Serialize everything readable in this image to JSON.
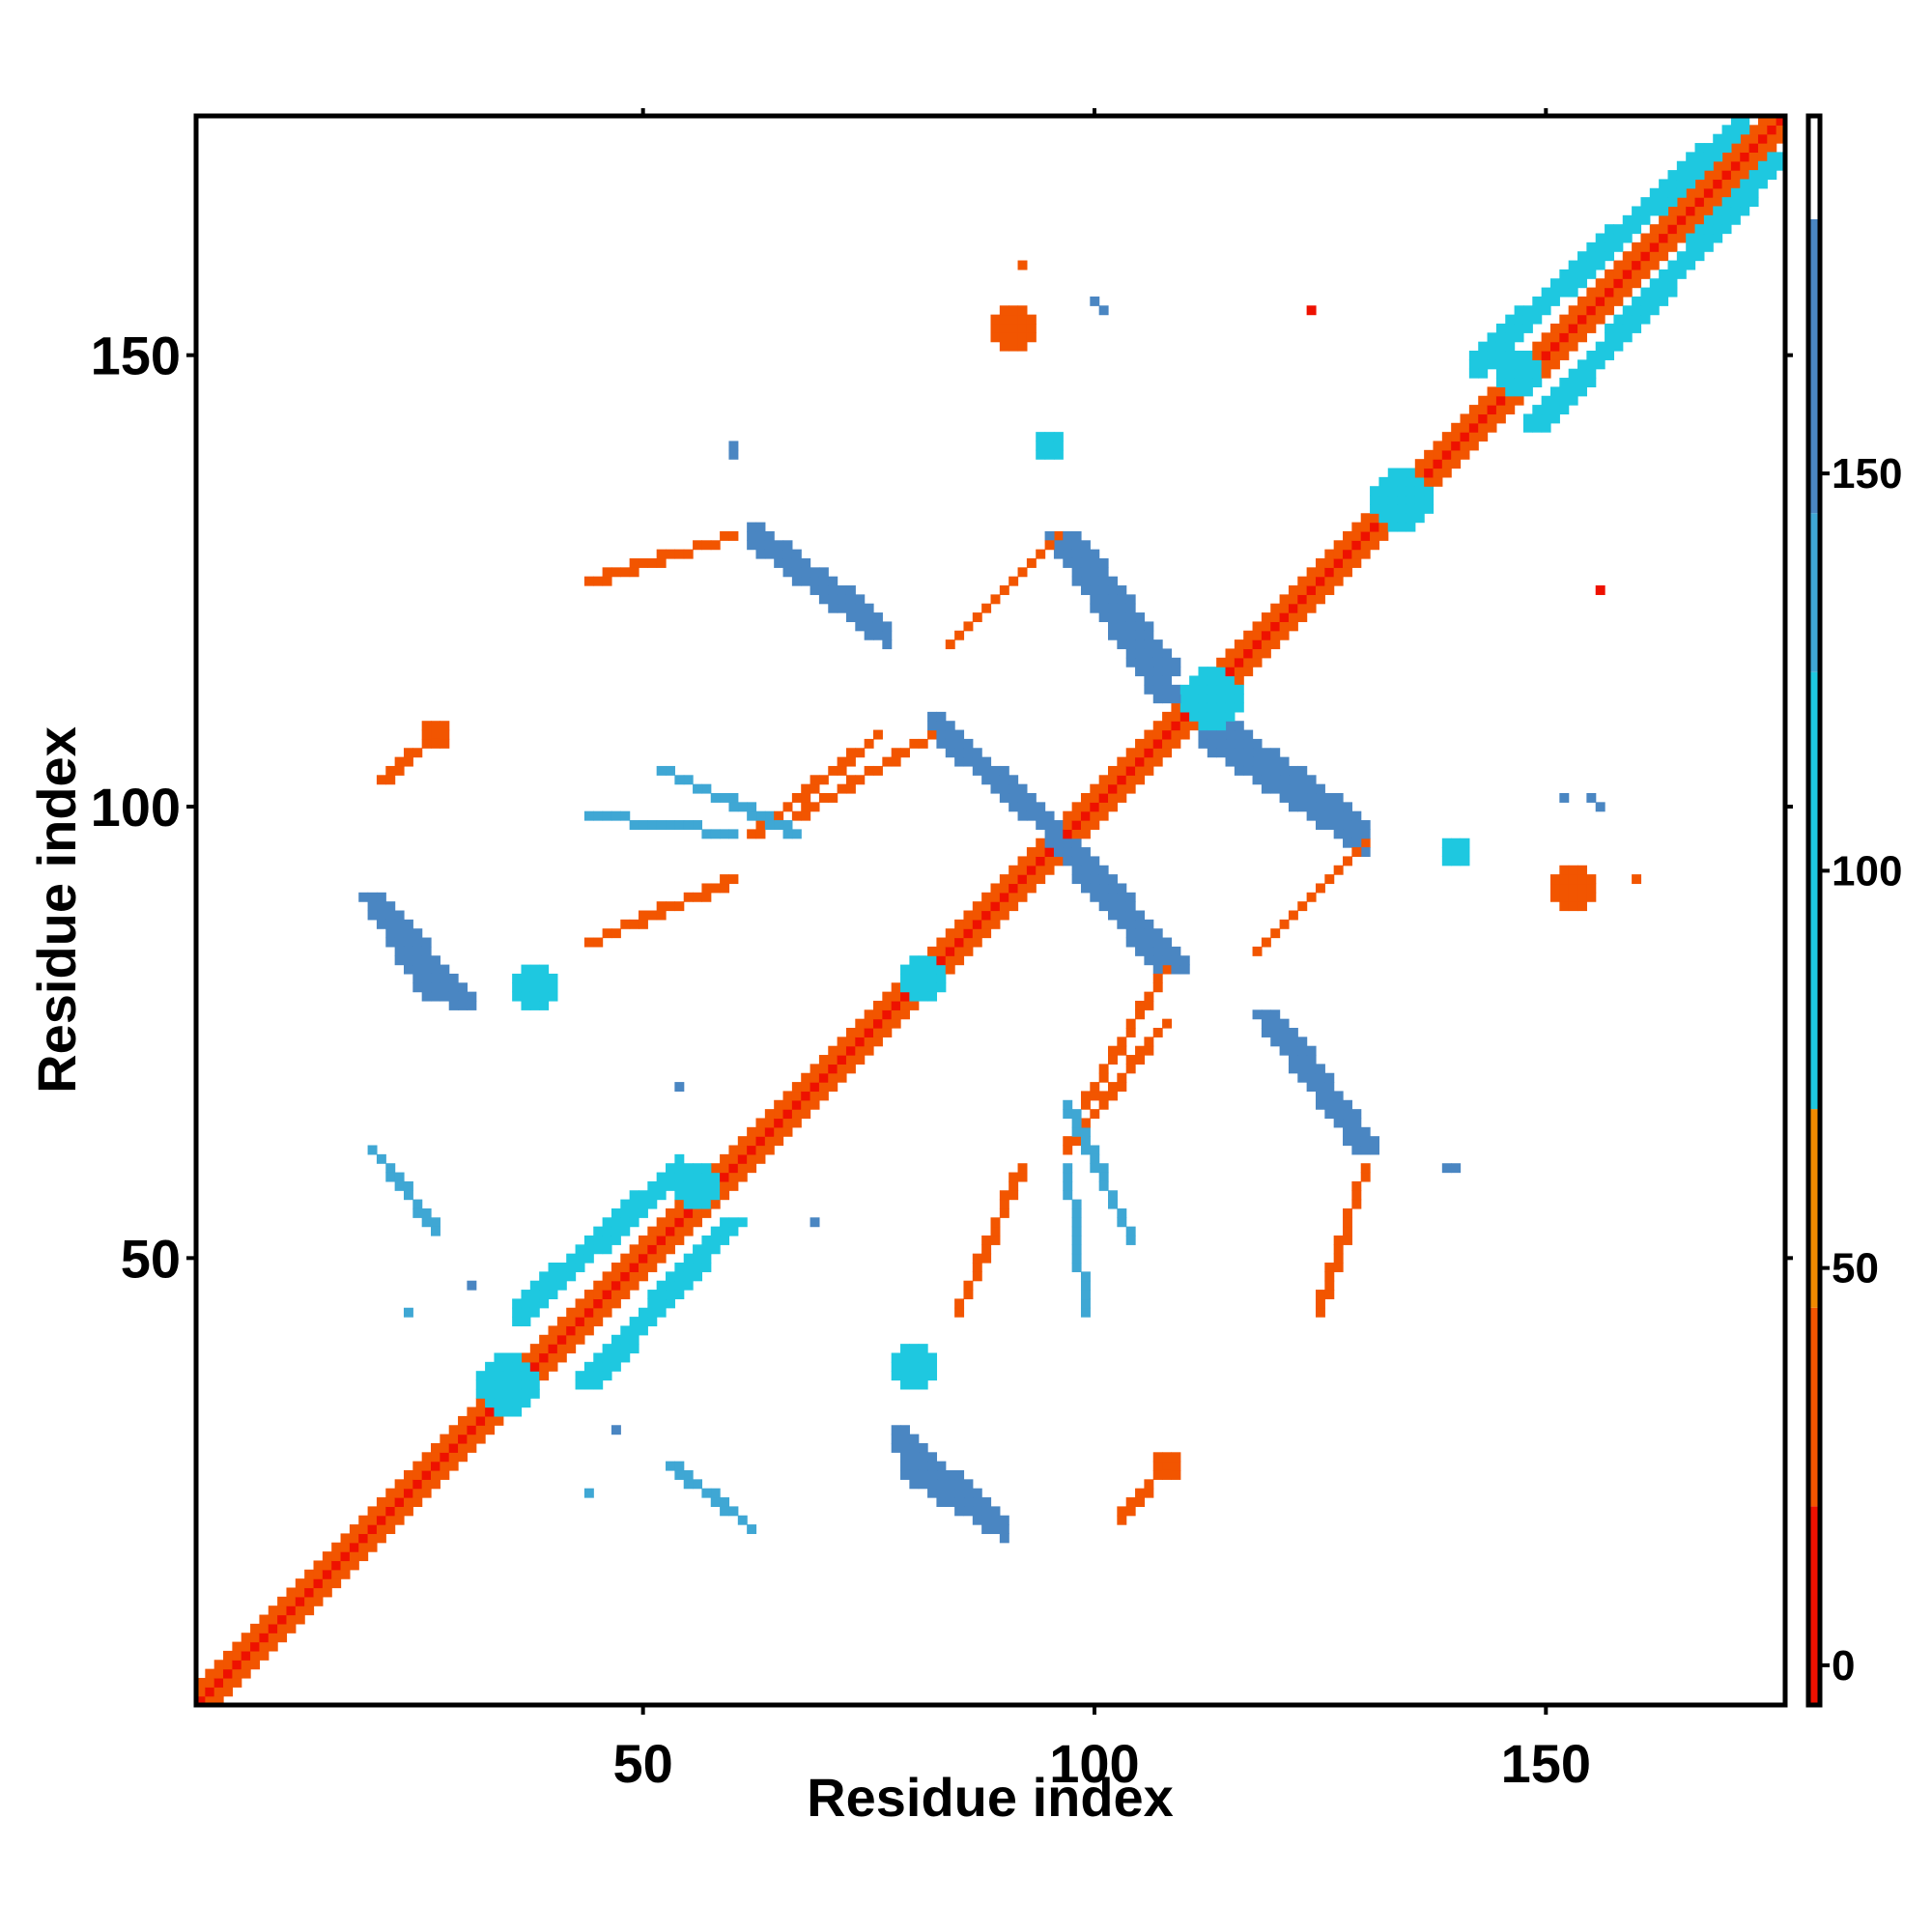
{
  "chart_data": {
    "type": "heatmap",
    "title": "",
    "xlabel": "Residue index",
    "ylabel": "Residue index",
    "xlim": [
      1,
      176
    ],
    "ylim": [
      1,
      176
    ],
    "x_ticks": [
      50,
      100,
      150
    ],
    "y_ticks": [
      50,
      100,
      150
    ],
    "x_tick_labels": [
      "50",
      "100",
      "150"
    ],
    "y_tick_labels": [
      "50",
      "100",
      "150"
    ],
    "colorbar": {
      "range": [
        -5,
        195
      ],
      "ticks": [
        0,
        50,
        100,
        150
      ],
      "tick_labels": [
        "0",
        "50",
        "100",
        "150"
      ],
      "bands": [
        {
          "from": -5,
          "to": 20,
          "color": "#ee1100"
        },
        {
          "from": 20,
          "to": 45,
          "color": "#f25500"
        },
        {
          "from": 45,
          "to": 70,
          "color": "#f08a00"
        },
        {
          "from": 70,
          "to": 125,
          "color": "#1ec8e0"
        },
        {
          "from": 125,
          "to": 145,
          "color": "#3fa7d4"
        },
        {
          "from": 145,
          "to": 182,
          "color": "#4a86c2"
        },
        {
          "from": 182,
          "to": 195,
          "color": "#ffffff"
        }
      ]
    },
    "segments": [
      {
        "x1": 1,
        "y1": 1,
        "x2": 176,
        "y2": 176,
        "width": 4,
        "value": 40
      },
      {
        "x1": 1,
        "y1": 1,
        "x2": 176,
        "y2": 176,
        "width": 1,
        "value": 10
      },
      {
        "x1": 44,
        "y1": 36,
        "x2": 60,
        "y2": 54,
        "width": 3,
        "value": 100
      },
      {
        "x1": 36,
        "y1": 44,
        "x2": 54,
        "y2": 60,
        "width": 3,
        "value": 100
      },
      {
        "x1": 149,
        "y1": 142,
        "x2": 176,
        "y2": 172,
        "width": 3,
        "value": 100
      },
      {
        "x1": 142,
        "y1": 149,
        "x2": 172,
        "y2": 176,
        "width": 3,
        "value": 100
      },
      {
        "x1": 62,
        "y1": 130,
        "x2": 76,
        "y2": 120,
        "width": 3,
        "value": 150
      },
      {
        "x1": 130,
        "y1": 62,
        "x2": 120,
        "y2": 76,
        "width": 3,
        "value": 150
      },
      {
        "x1": 97,
        "y1": 130,
        "x2": 108,
        "y2": 115,
        "width": 3,
        "value": 155
      },
      {
        "x1": 130,
        "y1": 97,
        "x2": 115,
        "y2": 108,
        "width": 3,
        "value": 155
      },
      {
        "x1": 82,
        "y1": 109,
        "x2": 96,
        "y2": 97,
        "width": 3,
        "value": 160
      },
      {
        "x1": 109,
        "y1": 82,
        "x2": 97,
        "y2": 96,
        "width": 3,
        "value": 160
      },
      {
        "x1": 96,
        "y1": 96,
        "x2": 108,
        "y2": 82,
        "width": 3,
        "value": 160
      },
      {
        "x1": 20,
        "y1": 90,
        "x2": 30,
        "y2": 78,
        "width": 3,
        "value": 150
      },
      {
        "x1": 90,
        "y1": 20,
        "x2": 78,
        "y2": 30,
        "width": 3,
        "value": 150
      },
      {
        "x1": 112,
        "y1": 108,
        "x2": 130,
        "y2": 96,
        "width": 3,
        "value": 155
      },
      {
        "x1": 108,
        "y1": 112,
        "x2": 96,
        "y2": 130,
        "width": 3,
        "value": 155
      },
      {
        "x1": 79,
        "y1": 27,
        "x2": 90,
        "y2": 20,
        "width": 2,
        "value": 150
      },
      {
        "x1": 27,
        "y1": 79,
        "x2": 20,
        "y2": 90,
        "width": 2,
        "value": 150
      },
      {
        "x1": 119,
        "y1": 77,
        "x2": 130,
        "y2": 62,
        "width": 3,
        "value": 150
      },
      {
        "x1": 77,
        "y1": 119,
        "x2": 62,
        "y2": 130,
        "width": 3,
        "value": 150
      },
      {
        "x1": 84,
        "y1": 118,
        "x2": 96,
        "y2": 130,
        "width": 1,
        "value": 40
      },
      {
        "x1": 118,
        "y1": 84,
        "x2": 130,
        "y2": 96,
        "width": 1,
        "value": 40
      },
      {
        "x1": 44,
        "y1": 125,
        "x2": 60,
        "y2": 130,
        "width": 1,
        "value": 30
      },
      {
        "x1": 125,
        "y1": 44,
        "x2": 130,
        "y2": 60,
        "width": 1,
        "value": 30
      },
      {
        "x1": 44,
        "y1": 85,
        "x2": 60,
        "y2": 92,
        "width": 1,
        "value": 30
      },
      {
        "x1": 85,
        "y1": 44,
        "x2": 92,
        "y2": 60,
        "width": 1,
        "value": 30
      },
      {
        "x1": 62,
        "y1": 97,
        "x2": 76,
        "y2": 108,
        "width": 1,
        "value": 30
      },
      {
        "x1": 97,
        "y1": 62,
        "x2": 108,
        "y2": 76,
        "width": 1,
        "value": 30
      },
      {
        "x1": 99,
        "y1": 67,
        "x2": 108,
        "y2": 82,
        "width": 1,
        "value": 20
      },
      {
        "x1": 67,
        "y1": 99,
        "x2": 82,
        "y2": 108,
        "width": 1,
        "value": 20
      },
      {
        "x1": 44,
        "y1": 99,
        "x2": 60,
        "y2": 97,
        "width": 1,
        "value": 140
      },
      {
        "x1": 99,
        "y1": 44,
        "x2": 97,
        "y2": 60,
        "width": 1,
        "value": 140
      },
      {
        "x1": 20,
        "y1": 62,
        "x2": 27,
        "y2": 53,
        "width": 1,
        "value": 140
      },
      {
        "x1": 62,
        "y1": 20,
        "x2": 53,
        "y2": 27,
        "width": 1,
        "value": 140
      },
      {
        "x1": 97,
        "y1": 67,
        "x2": 104,
        "y2": 52,
        "width": 1,
        "value": 140
      },
      {
        "x1": 67,
        "y1": 97,
        "x2": 52,
        "y2": 104,
        "width": 1,
        "value": 140
      },
      {
        "x1": 21,
        "y1": 103,
        "x2": 27,
        "y2": 108,
        "width": 1,
        "value": 30
      },
      {
        "x1": 103,
        "y1": 21,
        "x2": 108,
        "y2": 27,
        "width": 1,
        "value": 30
      }
    ],
    "blobs": [
      {
        "x": 35,
        "y": 36,
        "r": 3,
        "value": 100
      },
      {
        "x": 134,
        "y": 134,
        "r": 3,
        "value": 100
      },
      {
        "x": 113,
        "y": 112,
        "r": 3,
        "value": 100
      },
      {
        "x": 81,
        "y": 81,
        "r": 2,
        "value": 100
      },
      {
        "x": 56,
        "y": 58,
        "r": 2,
        "value": 100
      },
      {
        "x": 147,
        "y": 148,
        "r": 2,
        "value": 100
      },
      {
        "x": 38,
        "y": 80,
        "r": 2,
        "value": 110
      },
      {
        "x": 80,
        "y": 38,
        "r": 2,
        "value": 110
      },
      {
        "x": 91,
        "y": 153,
        "r": 2,
        "value": 40
      },
      {
        "x": 153,
        "y": 91,
        "r": 2,
        "value": 40
      },
      {
        "x": 95,
        "y": 140,
        "r": 1,
        "value": 110
      },
      {
        "x": 140,
        "y": 95,
        "r": 1,
        "value": 110
      },
      {
        "x": 108,
        "y": 27,
        "r": 1,
        "value": 40
      },
      {
        "x": 27,
        "y": 108,
        "r": 1,
        "value": 40
      }
    ],
    "points": [
      {
        "x": 124,
        "y": 155,
        "value": 5
      },
      {
        "x": 156,
        "y": 124,
        "value": 5
      },
      {
        "x": 60,
        "y": 140,
        "value": 150
      },
      {
        "x": 140,
        "y": 60,
        "value": 150
      },
      {
        "x": 101,
        "y": 155,
        "value": 150
      },
      {
        "x": 155,
        "y": 101,
        "value": 150
      },
      {
        "x": 139,
        "y": 60,
        "value": 150
      },
      {
        "x": 60,
        "y": 139,
        "value": 150
      },
      {
        "x": 152,
        "y": 101,
        "value": 150
      },
      {
        "x": 156,
        "y": 100,
        "value": 150
      },
      {
        "x": 100,
        "y": 156,
        "value": 150
      },
      {
        "x": 31,
        "y": 47,
        "value": 150
      },
      {
        "x": 47,
        "y": 31,
        "value": 150
      },
      {
        "x": 160,
        "y": 92,
        "value": 30
      },
      {
        "x": 92,
        "y": 160,
        "value": 30
      },
      {
        "x": 85,
        "y": 45,
        "value": 30
      },
      {
        "x": 45,
        "y": 85,
        "value": 30
      },
      {
        "x": 44,
        "y": 24,
        "value": 140
      },
      {
        "x": 24,
        "y": 44,
        "value": 140
      },
      {
        "x": 69,
        "y": 54,
        "value": 150
      },
      {
        "x": 54,
        "y": 69,
        "value": 150
      }
    ]
  }
}
